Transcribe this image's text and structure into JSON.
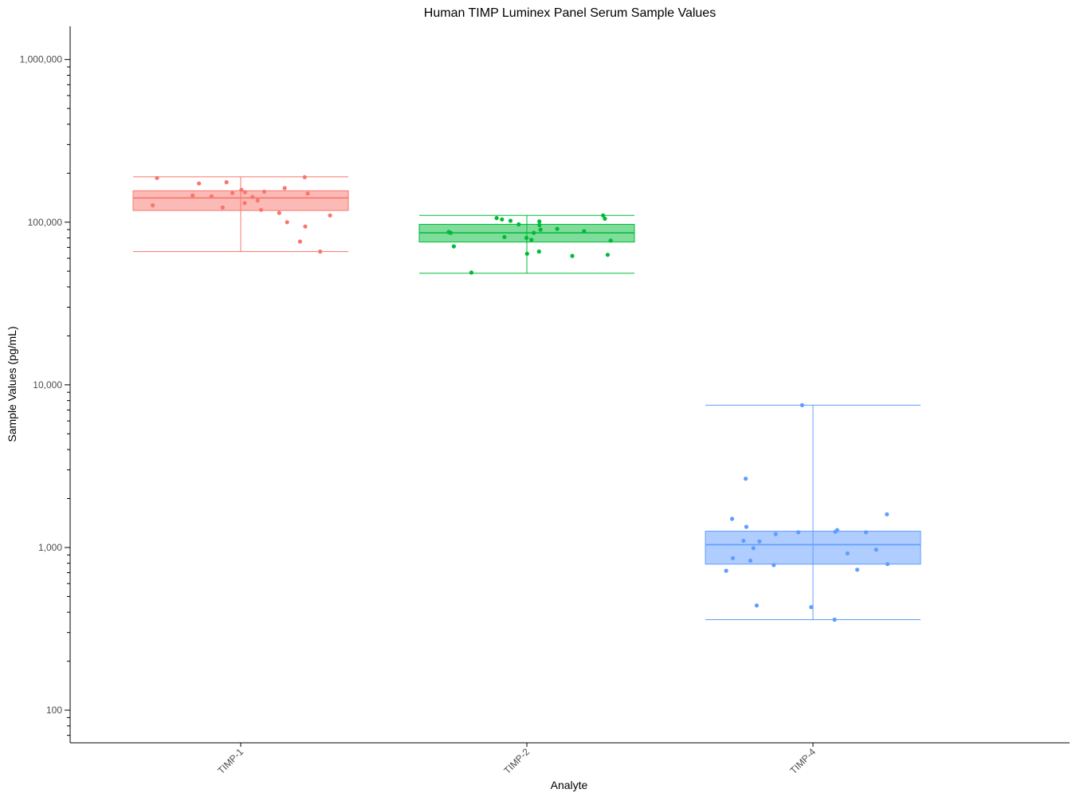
{
  "chart_data": {
    "type": "box",
    "title": "Human TIMP Luminex Panel Serum Sample Values",
    "xlabel": "Analyte",
    "ylabel": "Sample Values (pg/mL)",
    "y_scale": "log10",
    "ylim": [
      63,
      1600000
    ],
    "yticks": [
      {
        "value": 100,
        "label": "100"
      },
      {
        "value": 1000,
        "label": "1,000"
      },
      {
        "value": 10000,
        "label": "10,000"
      },
      {
        "value": 100000,
        "label": "100,000"
      },
      {
        "value": 1000000,
        "label": "1,000,000"
      }
    ],
    "categories": [
      "TIMP-1",
      "TIMP-2",
      "TIMP-4"
    ],
    "grid": false,
    "series": [
      {
        "name": "TIMP-1",
        "color": "#F8766D",
        "box": {
          "min": 66000,
          "q1": 118000,
          "median": 141000,
          "q3": 156000,
          "max": 190000
        },
        "points": [
          162000,
          143000,
          151000,
          173000,
          76000,
          100000,
          158000,
          153000,
          131000,
          127000,
          136000,
          119000,
          123000,
          189000,
          144000,
          176000,
          146000,
          110000,
          114000,
          150000,
          94000,
          187000,
          154000,
          66000
        ]
      },
      {
        "name": "TIMP-2",
        "color": "#00BA38",
        "box": {
          "min": 48500,
          "q1": 75500,
          "median": 86000,
          "q3": 97000,
          "max": 110000
        },
        "points": [
          87000,
          104000,
          106000,
          63000,
          86000,
          96000,
          66000,
          90000,
          101000,
          81000,
          110000,
          88000,
          49000,
          62000,
          91000,
          77000,
          97000,
          105000,
          64000,
          78000,
          80000,
          71000,
          86000,
          102000
        ]
      },
      {
        "name": "TIMP-4",
        "color": "#619CFF",
        "box": {
          "min": 360,
          "q1": 790,
          "median": 1040,
          "q3": 1260,
          "max": 7500
        },
        "points": [
          1240,
          1210,
          1600,
          360,
          790,
          920,
          1100,
          970,
          1500,
          780,
          730,
          1280,
          2650,
          860,
          1090,
          430,
          7500,
          830,
          720,
          1340,
          1250,
          1240,
          440,
          990
        ]
      }
    ]
  }
}
